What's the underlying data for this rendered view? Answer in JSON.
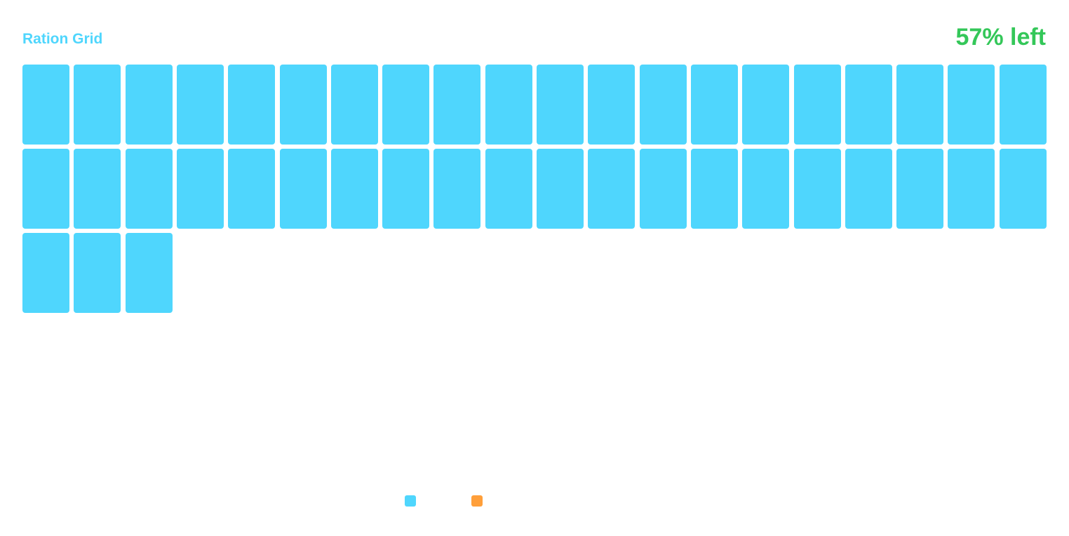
{
  "header": {
    "title": "Ration Grid",
    "status": "57% left"
  },
  "colors": {
    "title": "#4fd6fd",
    "status": "#34c759",
    "remaining": "#4fd6fd",
    "used": "#ff9f3a"
  },
  "chart_data": {
    "type": "waffle",
    "title": "Ration Grid",
    "columns": 20,
    "filled_cells": 43,
    "remaining_percent": 57,
    "series": [
      {
        "color": "#4fd6fd",
        "cells": 43
      },
      {
        "color": "#ff9f3a",
        "cells": 0
      }
    ],
    "legend_position": "bottom-center"
  }
}
